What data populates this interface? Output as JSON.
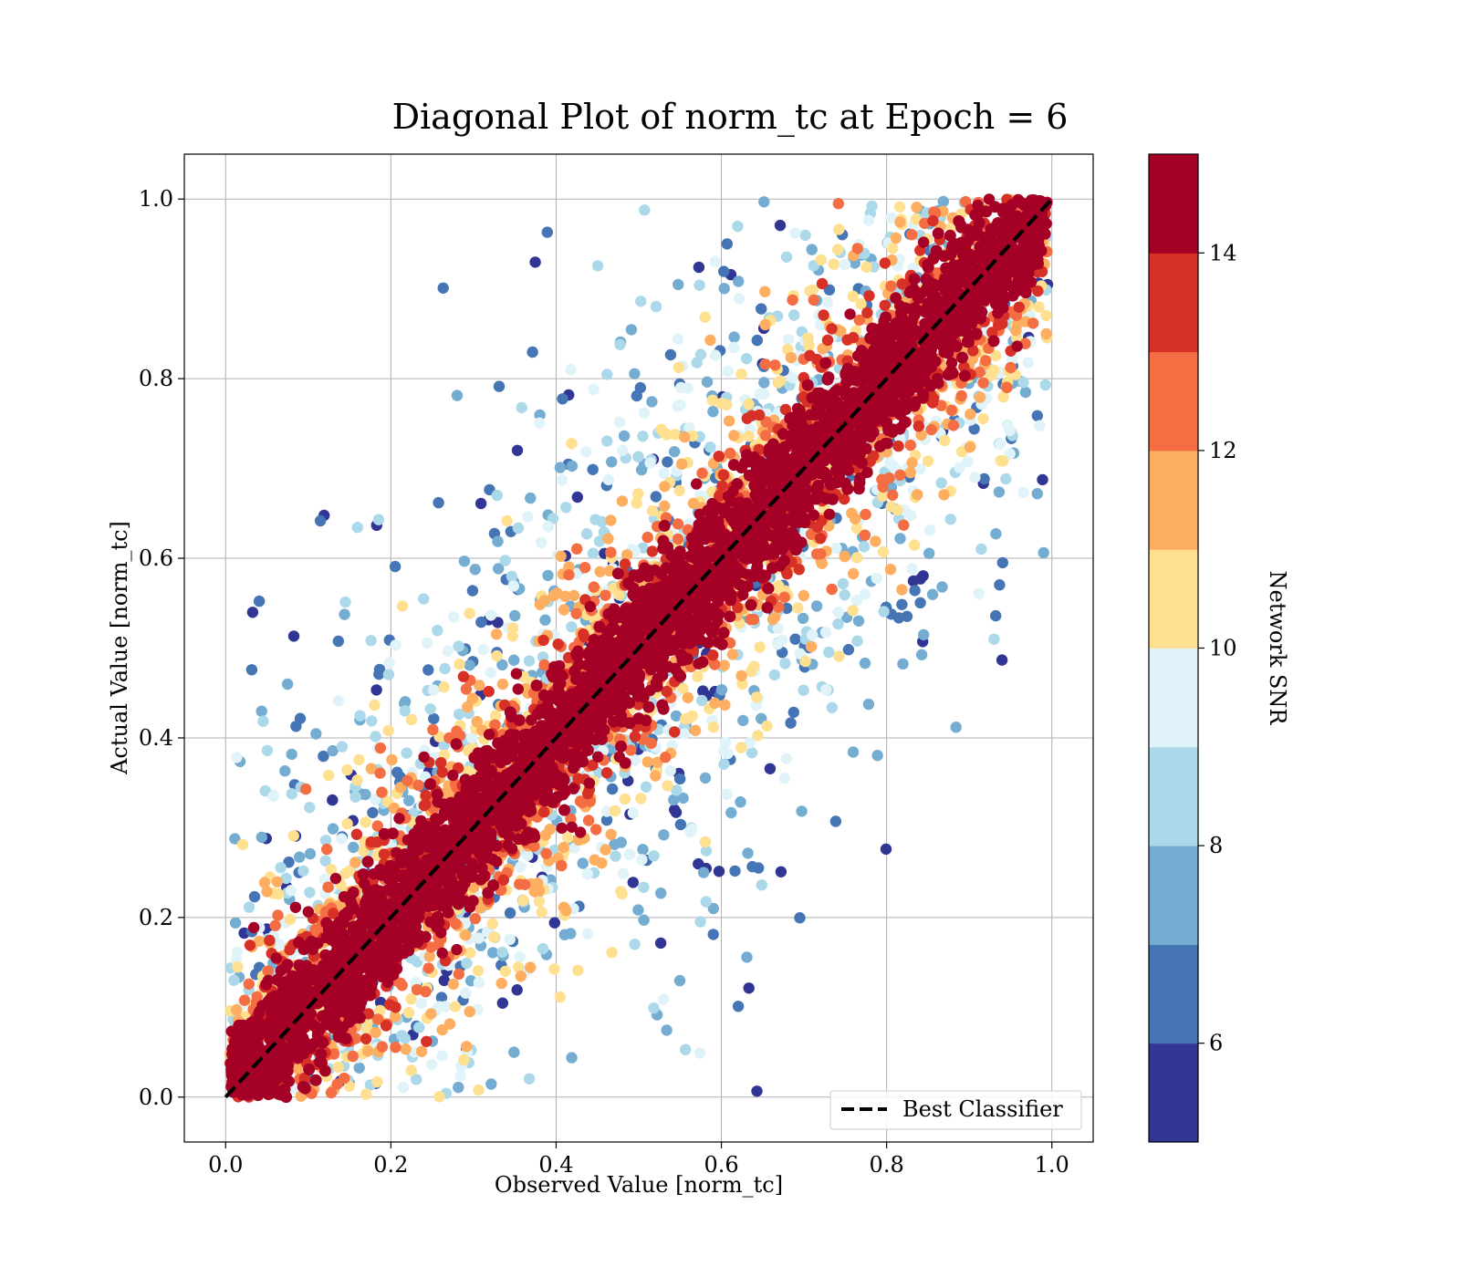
{
  "chart_data": {
    "type": "scatter",
    "title": "Diagonal Plot of norm_tc at Epoch = 6",
    "xlabel": "Observed Value [norm_tc]",
    "ylabel": "Actual Value [norm_tc]",
    "xlim": [
      -0.05,
      1.05
    ],
    "ylim": [
      -0.05,
      1.05
    ],
    "x_ticks": [
      "0.0",
      "0.2",
      "0.4",
      "0.6",
      "0.8",
      "1.0"
    ],
    "y_ticks": [
      "0.0",
      "0.2",
      "0.4",
      "0.6",
      "0.8",
      "1.0"
    ],
    "grid": true,
    "series": [
      {
        "name": "Best Classifier",
        "kind": "line",
        "style": "dashed",
        "color": "#000000",
        "x": [
          0.0,
          1.0
        ],
        "y": [
          0.0,
          1.0
        ]
      }
    ],
    "scatter_description": {
      "x_range": [
        0.0,
        1.0
      ],
      "y_range": [
        0.0,
        1.0
      ],
      "high_snr_band": "dense red points hugging the diagonal y = x; lower-SNR (blue) points spread farther from the diagonal",
      "color_by": "Network SNR"
    },
    "legend": {
      "position": "lower-right",
      "entries": [
        "Best Classifier"
      ]
    },
    "colorbar": {
      "label": "Network SNR",
      "range": [
        5,
        15
      ],
      "ticks": [
        "6",
        "8",
        "10",
        "12",
        "14"
      ],
      "tick_values": [
        6,
        8,
        10,
        12,
        14
      ],
      "colors": [
        "#313695",
        "#4575b4",
        "#74add1",
        "#abd9e9",
        "#e0f3f8",
        "#fee090",
        "#fdae61",
        "#f46d43",
        "#d73027",
        "#a50026"
      ]
    }
  }
}
